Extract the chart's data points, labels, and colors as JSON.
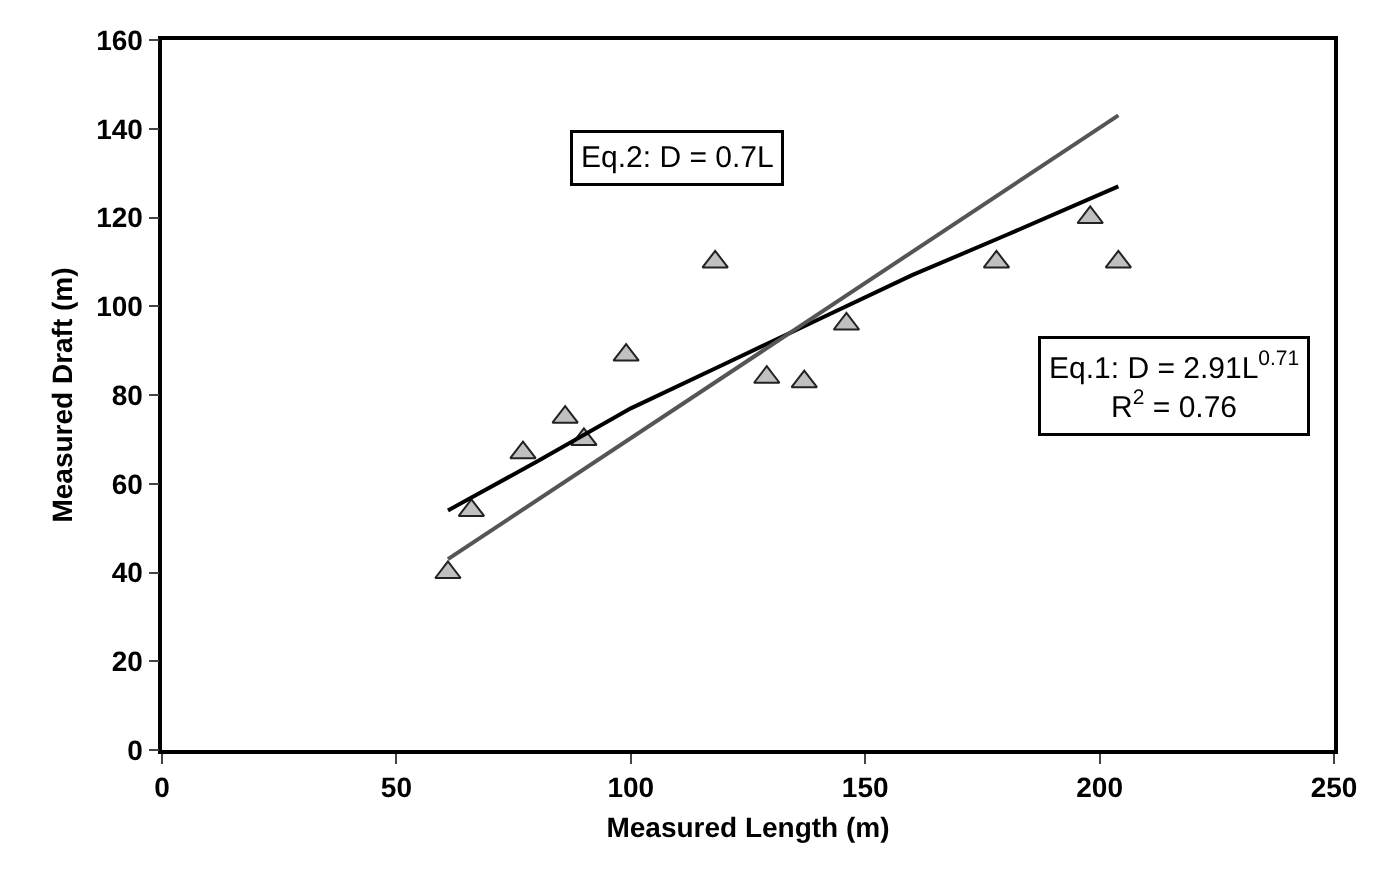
{
  "chart_data": {
    "type": "scatter",
    "xlabel": "Measured Length (m)",
    "ylabel": "Measured Draft (m)",
    "xlim": [
      0,
      250
    ],
    "xticks": [
      0,
      50,
      100,
      150,
      200,
      250
    ],
    "ylim": [
      0,
      160
    ],
    "yticks": [
      0,
      20,
      40,
      60,
      80,
      100,
      120,
      140,
      160
    ],
    "series": [
      {
        "marker": "triangle",
        "color": "#c0c0c0",
        "x": [
          61,
          66,
          77,
          86,
          90,
          99,
          118,
          129,
          137,
          146,
          178,
          198,
          204
        ],
        "values": [
          40,
          54,
          67,
          75,
          70,
          89,
          110,
          84,
          83,
          96,
          110,
          120,
          110
        ]
      },
      {
        "type": "line",
        "marker": "none",
        "line_style": "solid",
        "color": "#000000",
        "x": [
          61,
          80,
          100,
          120,
          140,
          160,
          180,
          204
        ],
        "values": [
          54,
          65,
          77,
          87,
          97,
          107,
          116,
          127
        ]
      },
      {
        "type": "line",
        "marker": "none",
        "line_style": "solid",
        "color": "#555555",
        "x": [
          61,
          204
        ],
        "values": [
          43,
          143
        ]
      }
    ],
    "annotations": [
      "Eq.2: D = 0.7L",
      "Eq.1: D = 2.91L$^{0.71}$\nR$^{2}$ = 0.76"
    ]
  }
}
